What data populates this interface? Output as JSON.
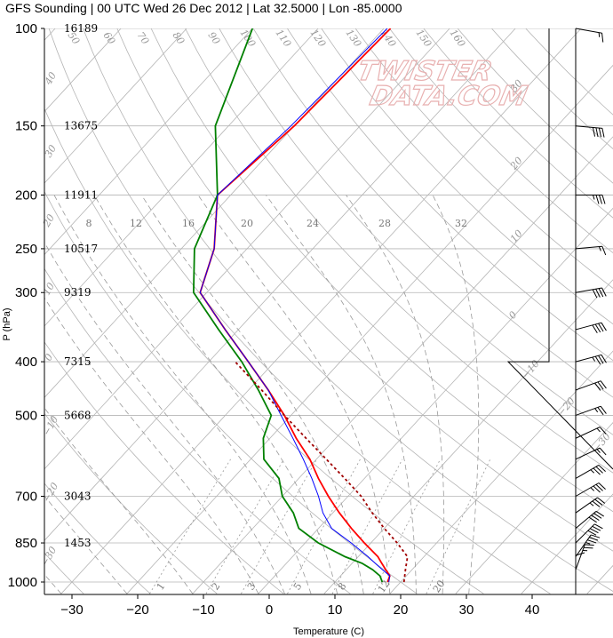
{
  "title": "GFS Sounding | 00 UTC Wed 26 Dec 2012 | Lat 32.5000 | Lon -85.0000",
  "watermark": {
    "line1": "TWISTER",
    "line2": "DATA.COM"
  },
  "colors": {
    "temperature": "#ff0000",
    "dewpoint": "#008000",
    "virtual_temp": "#0000ff",
    "parcel": "#a00000",
    "grid": "#b5b5b5",
    "mixing": "#9a9a9a",
    "wind": "#000000"
  },
  "chart_data": {
    "type": "line",
    "diagram": "skew-t log-p",
    "xlabel": "Temperature (C)",
    "ylabel": "P (hPa)",
    "xlim": [
      -35,
      45
    ],
    "ylim": [
      1050,
      100
    ],
    "x_ticks": [
      "−30",
      "−20",
      "−10",
      "0",
      "10",
      "20",
      "30",
      "40"
    ],
    "x_tick_values": [
      -30,
      -20,
      -10,
      0,
      10,
      20,
      30,
      40
    ],
    "pressure_levels": [
      1000,
      850,
      700,
      500,
      400,
      300,
      250,
      200,
      150,
      100
    ],
    "heights_m": [
      "16189",
      "13675",
      "11911",
      "10517",
      "9319",
      "7315",
      "5668",
      "3043",
      "1453"
    ],
    "height_levels_hpa": [
      100,
      150,
      200,
      250,
      300,
      400,
      500,
      700,
      850
    ],
    "mixing_ratio_labels": [
      "8",
      "12",
      "16",
      "20",
      "24",
      "28",
      "32"
    ],
    "mixing_ratio_bottom_labels": [
      "1",
      "2",
      "3",
      "5",
      "8",
      "12",
      "20"
    ],
    "dry_adiabat_labels": [
      "50",
      "60",
      "70",
      "80",
      "90",
      "100",
      "110",
      "120",
      "130",
      "140",
      "150",
      "160"
    ],
    "moist_adiabat_labels": [
      "40",
      "30",
      "20",
      "10",
      "0",
      "−10",
      "−20",
      "−30"
    ],
    "moist_adiabat_labels_right": [
      "30",
      "20",
      "10",
      "0",
      "−10",
      "−20",
      "−30"
    ],
    "series": [
      {
        "name": "Temperature",
        "p": [
          1000,
          975,
          950,
          925,
          900,
          850,
          800,
          750,
          700,
          650,
          600,
          550,
          500,
          450,
          400,
          350,
          300,
          250,
          200,
          150,
          100
        ],
        "t": [
          18.0,
          17.5,
          16.0,
          14.5,
          13.0,
          9.0,
          5.0,
          1.0,
          -3.0,
          -7.0,
          -11.0,
          -16.0,
          -21.0,
          -27.0,
          -34.0,
          -42.0,
          -51.0,
          -55.0,
          -62.0,
          -60.0,
          -59.0
        ]
      },
      {
        "name": "Dewpoint",
        "p": [
          1000,
          975,
          950,
          925,
          900,
          850,
          800,
          750,
          700,
          650,
          600,
          550,
          500,
          450,
          400,
          350,
          300,
          250,
          200,
          150,
          100
        ],
        "t": [
          17.2,
          16.0,
          14.0,
          11.5,
          8.0,
          2.0,
          -3.0,
          -6.0,
          -10.0,
          -13.0,
          -18.0,
          -21.0,
          -23.0,
          -28.5,
          -35.0,
          -43.0,
          -52.0,
          -58.0,
          -62.0,
          -72.0,
          -80.0
        ]
      },
      {
        "name": "Virtual temperature",
        "p": [
          1000,
          975,
          950,
          925,
          900,
          850,
          800,
          750,
          700,
          650,
          600,
          550,
          500,
          450,
          400,
          350,
          300,
          250,
          200,
          150,
          100
        ],
        "t": [
          18.2,
          17.5,
          15.5,
          13.5,
          11.5,
          7.0,
          2.0,
          -1.5,
          -4.5,
          -8.0,
          -12.0,
          -16.5,
          -21.5,
          -27.0,
          -34.0,
          -42.0,
          -51.0,
          -55.0,
          -62.0,
          -60.5,
          -59.5
        ]
      },
      {
        "name": "Parcel",
        "p": [
          1000,
          950,
          900,
          850,
          800,
          750,
          700,
          650,
          600,
          550,
          500,
          450,
          400
        ],
        "t": [
          20.5,
          19.0,
          17.5,
          14.0,
          10.0,
          6.0,
          2.0,
          -3.0,
          -8.5,
          -14.5,
          -21.0,
          -28.0,
          -36.0
        ]
      }
    ],
    "wind_barbs": [
      {
        "p": 100,
        "dir": 280,
        "spd": 15
      },
      {
        "p": 150,
        "dir": 275,
        "spd": 40
      },
      {
        "p": 200,
        "dir": 270,
        "spd": 35
      },
      {
        "p": 250,
        "dir": 265,
        "spd": 15
      },
      {
        "p": 300,
        "dir": 260,
        "spd": 40
      },
      {
        "p": 350,
        "dir": 255,
        "spd": 40
      },
      {
        "p": 400,
        "dir": 255,
        "spd": 35
      },
      {
        "p": 450,
        "dir": 250,
        "spd": 30
      },
      {
        "p": 500,
        "dir": 250,
        "spd": 25
      },
      {
        "p": 550,
        "dir": 245,
        "spd": 15
      },
      {
        "p": 600,
        "dir": 245,
        "spd": 15
      },
      {
        "p": 650,
        "dir": 240,
        "spd": 35
      },
      {
        "p": 700,
        "dir": 240,
        "spd": 35
      },
      {
        "p": 750,
        "dir": 235,
        "spd": 35
      },
      {
        "p": 800,
        "dir": 230,
        "spd": 40
      },
      {
        "p": 850,
        "dir": 225,
        "spd": 40
      },
      {
        "p": 900,
        "dir": 215,
        "spd": 35
      },
      {
        "p": 950,
        "dir": 200,
        "spd": 25
      },
      {
        "p": 1000,
        "dir": 180,
        "spd": 10
      }
    ]
  }
}
